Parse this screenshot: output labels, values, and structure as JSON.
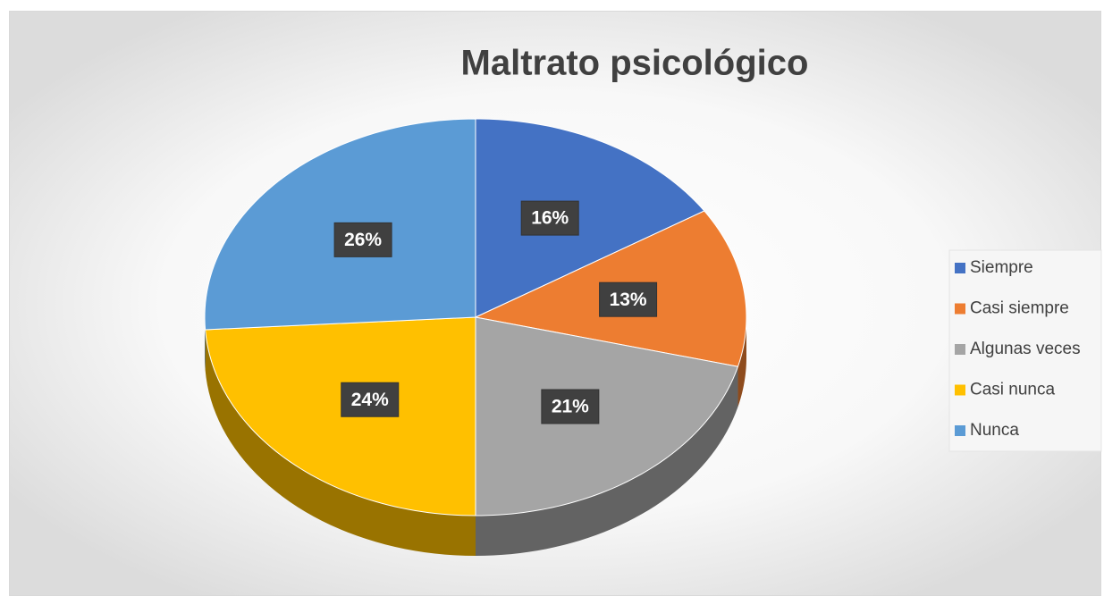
{
  "chart_data": {
    "type": "pie",
    "title": "Maltrato psicológico",
    "categories": [
      "Siempre",
      "Casi siempre",
      "Algunas veces",
      "Casi nunca",
      "Nunca"
    ],
    "values": [
      16,
      13,
      21,
      24,
      26
    ],
    "value_labels": [
      "16%",
      "13%",
      "21%",
      "24%",
      "26%"
    ],
    "colors": [
      "#4472c4",
      "#ed7d31",
      "#a5a5a5",
      "#ffc000",
      "#5b9bd5"
    ],
    "legend": "right"
  }
}
